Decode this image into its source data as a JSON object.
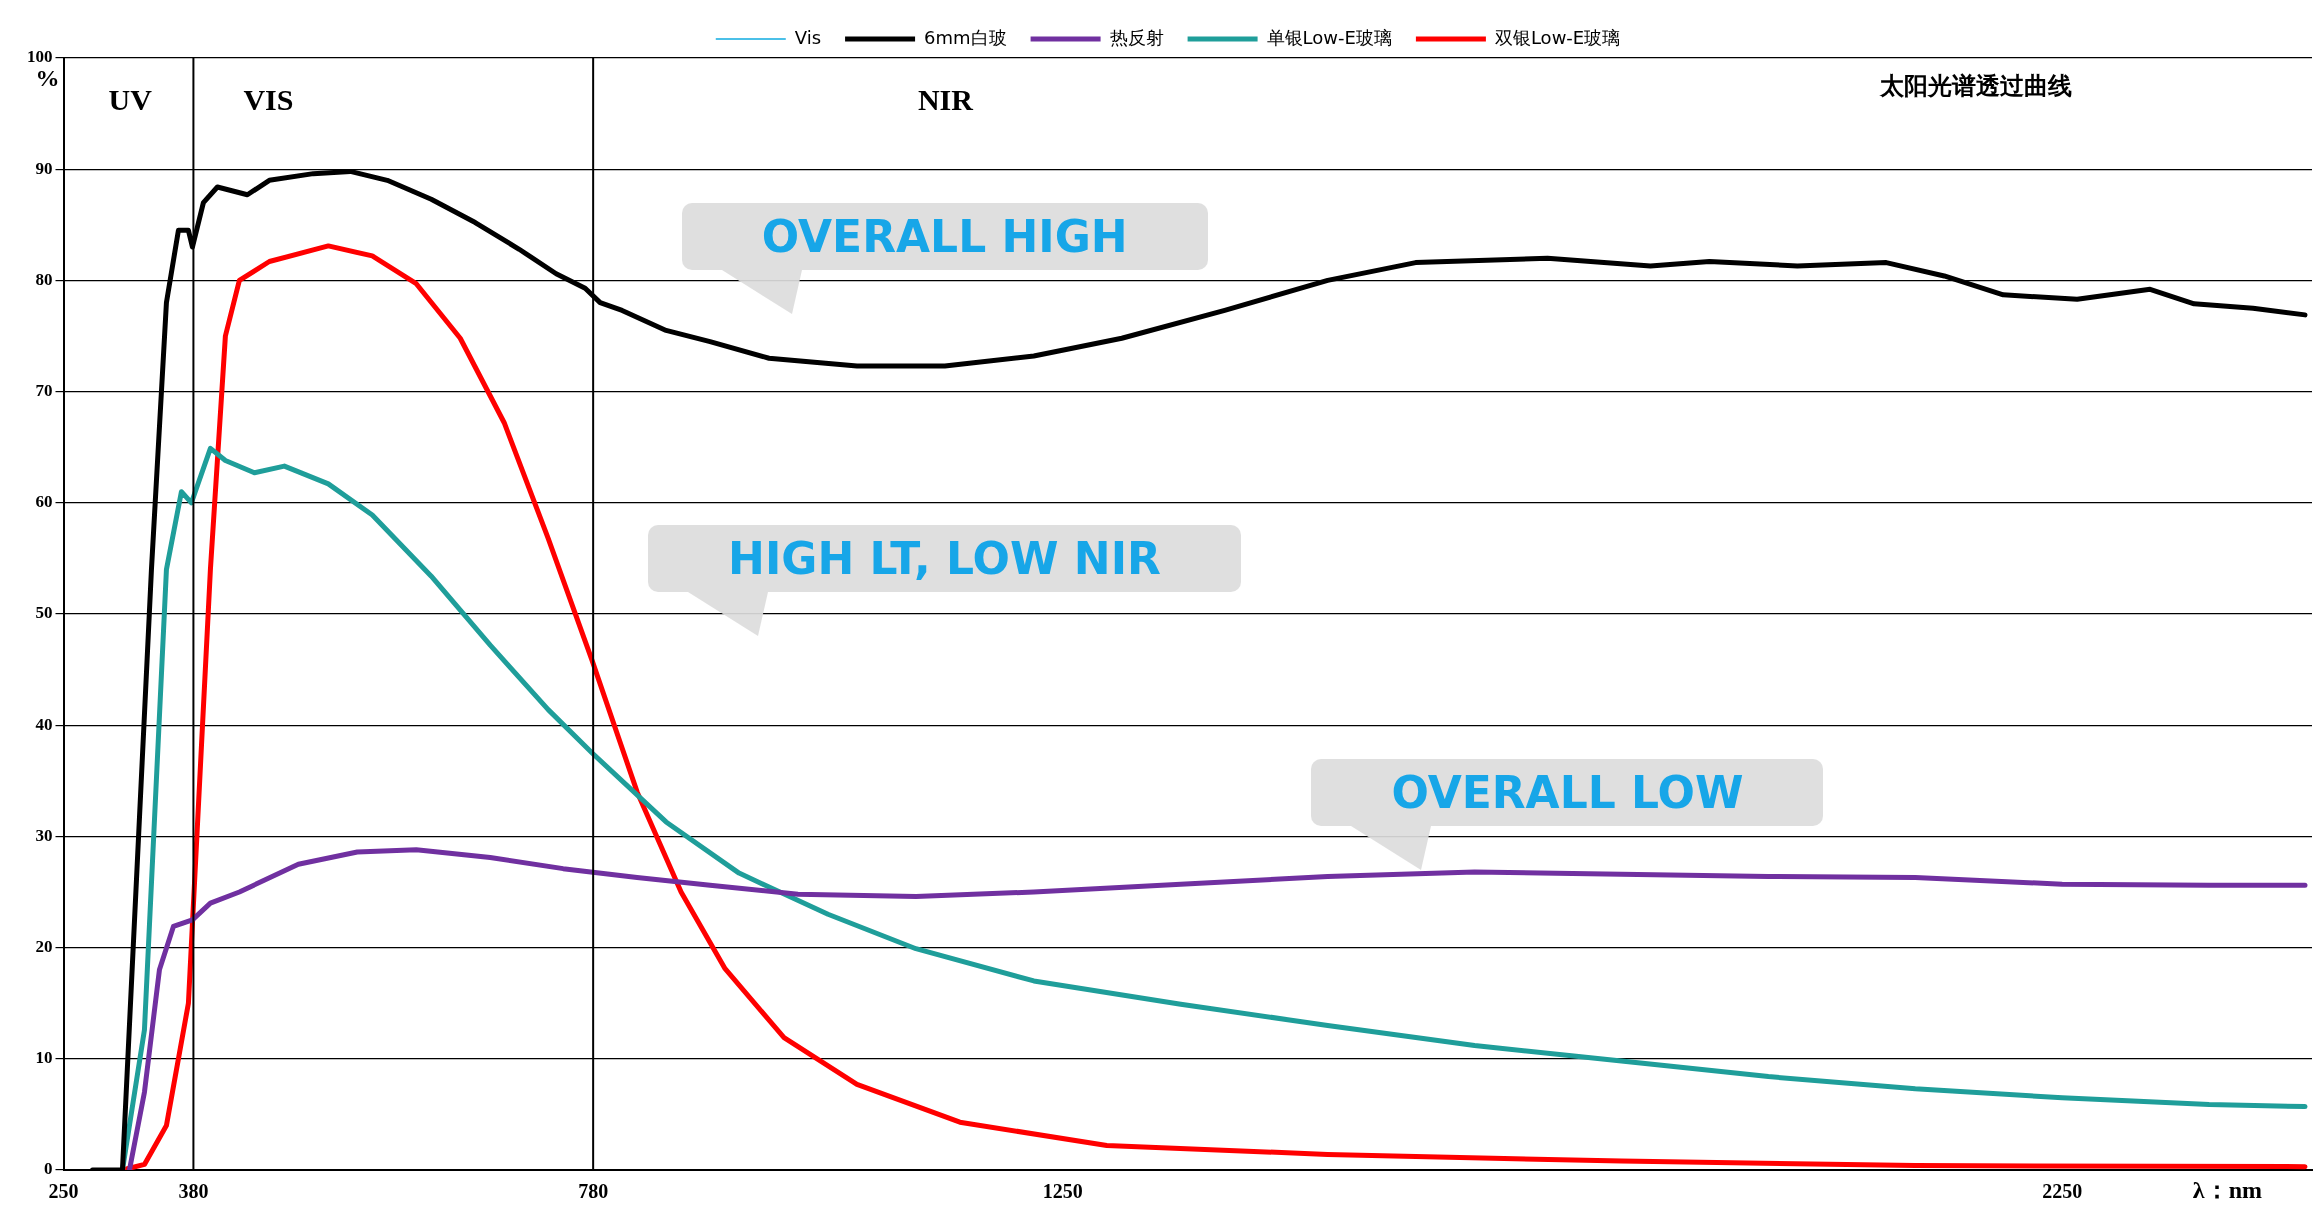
{
  "chart_data": {
    "type": "line",
    "title": "太阳光谱透过曲线",
    "xlabel": "λ：nm",
    "ylabel": "%",
    "xlim": [
      250,
      2500
    ],
    "xticks": [
      250,
      380,
      780,
      1250,
      2250
    ],
    "ylim": [
      0,
      100
    ],
    "yticks": [
      0,
      10,
      20,
      30,
      40,
      50,
      60,
      70,
      80,
      90,
      100
    ],
    "grid": "y",
    "legend": "top",
    "marker": "none",
    "line_style": "solid",
    "ref_lines": [
      {
        "axis": "x",
        "value": 380,
        "color": "#000000"
      },
      {
        "axis": "x",
        "value": 780,
        "color": "#000000"
      }
    ],
    "annotations": [
      "UV",
      "VIS",
      "NIR",
      "OVERALL HIGH",
      "HIGH LT, LOW NIR",
      "OVERALL LOW"
    ],
    "series": [
      {
        "name": "Vis",
        "color": "#4bc0e8"
      },
      {
        "name": "6mm白玻",
        "color": "#000000",
        "x": [
          279,
          309,
          338,
          353,
          365,
          375,
          379,
          390,
          404,
          434,
          456,
          500,
          537,
          574,
          618,
          662,
          706,
          743,
          772,
          787,
          809,
          853,
          897,
          956,
          1044,
          1132,
          1221,
          1309,
          1412,
          1515,
          1603,
          1735,
          1838,
          1897,
          1985,
          2074,
          2132,
          2191,
          2265,
          2338,
          2382,
          2441,
          2493
        ],
        "values": [
          0,
          0,
          54,
          78,
          84.5,
          84.5,
          83,
          87,
          88.4,
          87.7,
          89,
          89.6,
          89.8,
          89,
          87.3,
          85.2,
          82.8,
          80.6,
          79.3,
          78,
          77.3,
          75.5,
          74.5,
          73,
          72.3,
          72.3,
          73.2,
          74.8,
          77.3,
          80,
          81.6,
          82,
          81.3,
          81.7,
          81.3,
          81.6,
          80.4,
          78.7,
          78.3,
          79.2,
          77.9,
          77.5,
          76.9
        ]
      },
      {
        "name": "热反射",
        "color": "#7030a0",
        "x": [
          316,
          331,
          346,
          360,
          379,
          397,
          426,
          485,
          544,
          603,
          677,
          750,
          824,
          897,
          985,
          1103,
          1221,
          1368,
          1515,
          1662,
          1809,
          1956,
          2103,
          2250,
          2397,
          2493
        ],
        "values": [
          0,
          7,
          18,
          21.9,
          22.5,
          24,
          25,
          27.5,
          28.6,
          28.8,
          28.1,
          27.1,
          26.3,
          25.6,
          24.8,
          24.6,
          25,
          25.7,
          26.4,
          26.8,
          26.6,
          26.4,
          26.3,
          25.7,
          25.6,
          25.6
        ]
      },
      {
        "name": "单银Low-E玻璃",
        "color": "#1f9e9a",
        "x": [
          309,
          331,
          353,
          368,
          378,
          397,
          412,
          441,
          471,
          515,
          559,
          618,
          677,
          735,
          779,
          853,
          926,
          1015,
          1103,
          1221,
          1368,
          1515,
          1662,
          1809,
          1956,
          2103,
          2250,
          2397,
          2493
        ],
        "values": [
          0,
          12.6,
          54,
          61,
          60,
          64.9,
          63.8,
          62.7,
          63.3,
          61.7,
          58.9,
          53.4,
          47.2,
          41.4,
          37.5,
          31.3,
          26.7,
          23,
          19.9,
          17,
          14.9,
          13,
          11.2,
          9.8,
          8.4,
          7.3,
          6.5,
          5.9,
          5.7
        ]
      },
      {
        "name": "双银Low-E玻璃",
        "color": "#ff0000",
        "x": [
          309,
          331,
          353,
          375,
          397,
          412,
          426,
          456,
          515,
          559,
          603,
          647,
          691,
          735,
          779,
          824,
          868,
          912,
          971,
          1044,
          1147,
          1294,
          1515,
          1809,
          2103,
          2493
        ],
        "values": [
          0,
          0.5,
          4,
          15,
          54,
          75,
          80,
          81.7,
          83.1,
          82.2,
          79.7,
          74.8,
          67.2,
          56.8,
          45.8,
          34,
          25,
          18.1,
          11.9,
          7.7,
          4.3,
          2.2,
          1.4,
          0.8,
          0.4,
          0.3
        ]
      }
    ]
  }
}
